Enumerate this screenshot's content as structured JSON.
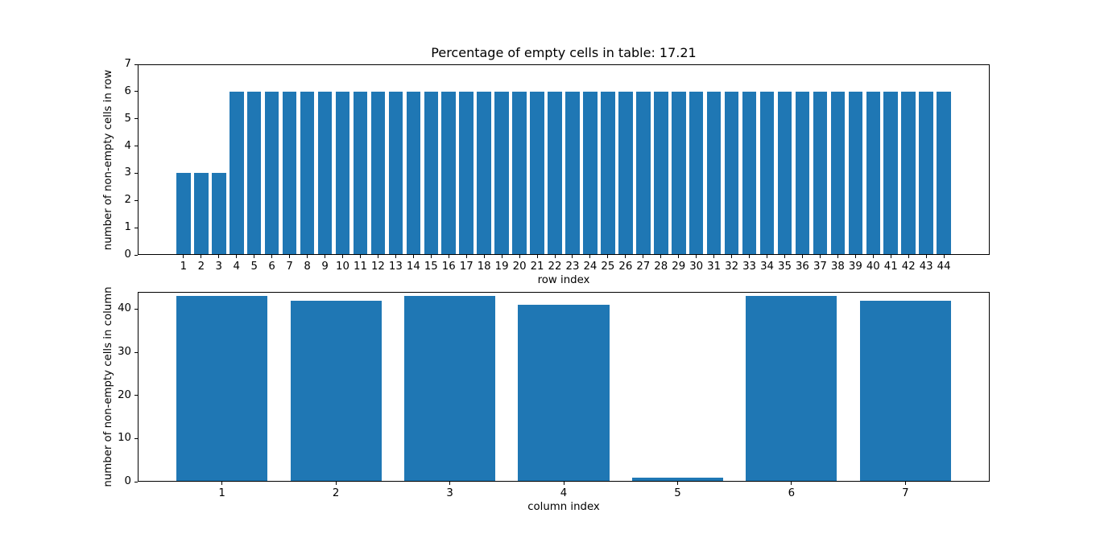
{
  "figure": {
    "background": "#ffffff",
    "empty_percentage": "17.21"
  },
  "chart_data": [
    {
      "type": "bar",
      "title": "Percentage of empty cells in table: 17.21",
      "xlabel": "row index",
      "ylabel": "number of non-empty cells in row",
      "x": [
        1,
        2,
        3,
        4,
        5,
        6,
        7,
        8,
        9,
        10,
        11,
        12,
        13,
        14,
        15,
        16,
        17,
        18,
        19,
        20,
        21,
        22,
        23,
        24,
        25,
        26,
        27,
        28,
        29,
        30,
        31,
        32,
        33,
        34,
        35,
        36,
        37,
        38,
        39,
        40,
        41,
        42,
        43,
        44
      ],
      "values": [
        3,
        3,
        3,
        6,
        6,
        6,
        6,
        6,
        6,
        6,
        6,
        6,
        6,
        6,
        6,
        6,
        6,
        6,
        6,
        6,
        6,
        6,
        6,
        6,
        6,
        6,
        6,
        6,
        6,
        6,
        6,
        6,
        6,
        6,
        6,
        6,
        6,
        6,
        6,
        6,
        6,
        6,
        6,
        6
      ],
      "bar_color": "#1f77b4",
      "bar_width": 0.8,
      "xlim": [
        -1.59,
        46.59
      ],
      "ylim": [
        0,
        7
      ],
      "yticks": [
        0,
        1,
        2,
        3,
        4,
        5,
        6,
        7
      ],
      "grid": false,
      "legend": null
    },
    {
      "type": "bar",
      "title": "",
      "xlabel": "column index",
      "ylabel": "number of non-empty cells in column",
      "x": [
        1,
        2,
        3,
        4,
        5,
        6,
        7
      ],
      "values": [
        43,
        42,
        43,
        41,
        1,
        43,
        42
      ],
      "bar_color": "#1f77b4",
      "bar_width": 0.8,
      "xlim": [
        0.26,
        7.74
      ],
      "ylim": [
        0,
        44
      ],
      "yticks": [
        0,
        10,
        20,
        30,
        40
      ],
      "grid": false,
      "legend": null
    }
  ]
}
